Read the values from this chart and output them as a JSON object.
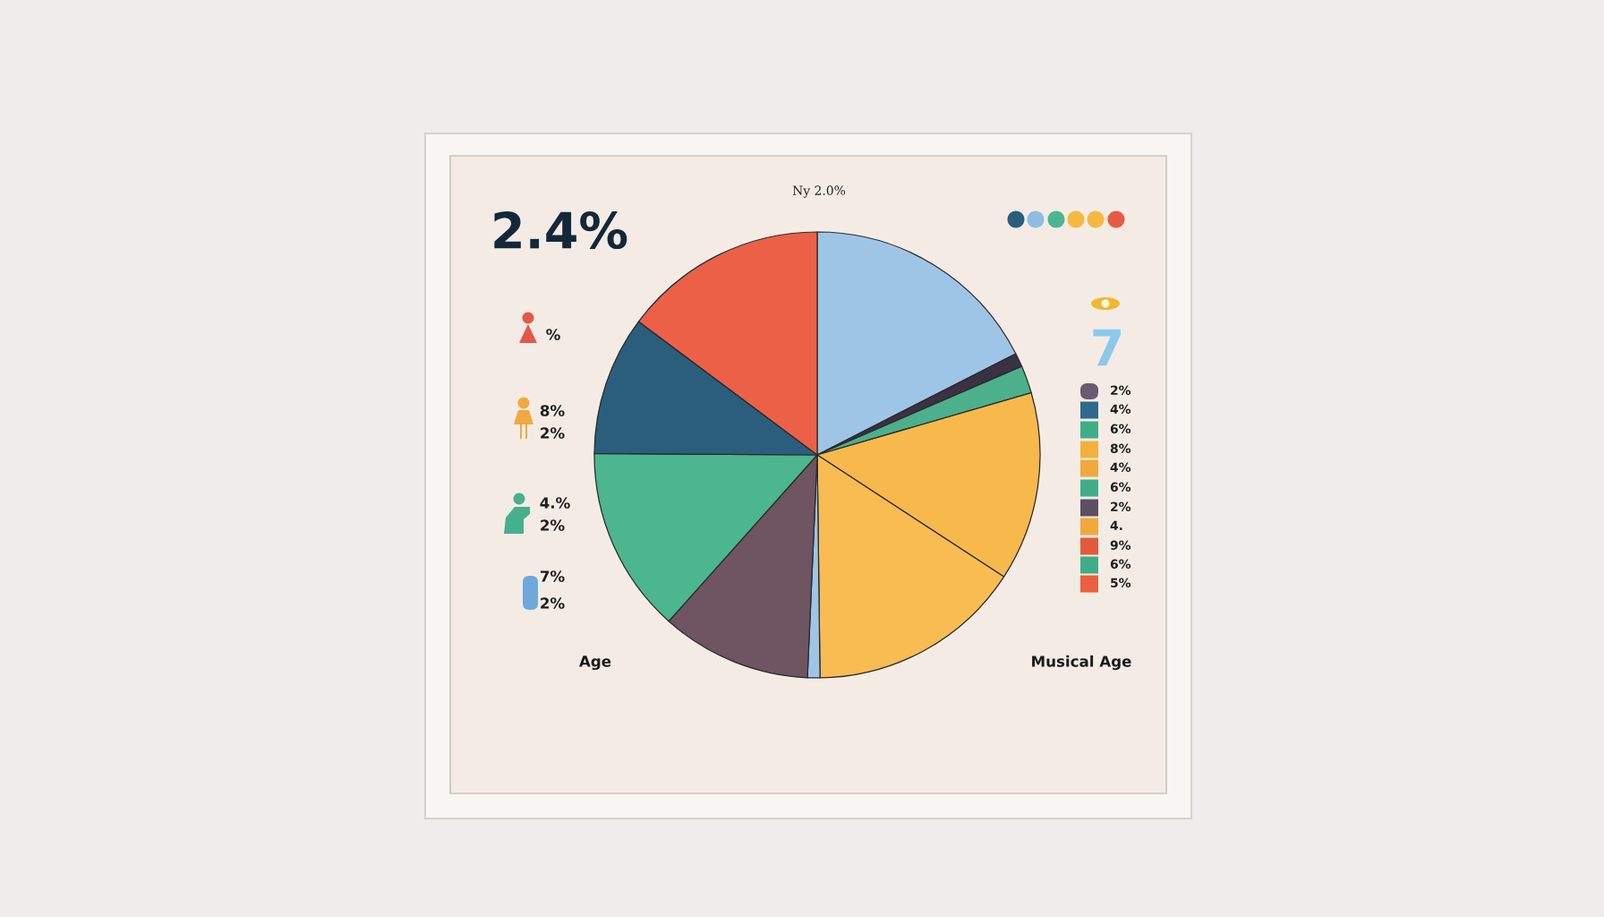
{
  "chart_data": {
    "type": "pie",
    "title": "2.4%",
    "categories": [
      null,
      null,
      null,
      null,
      null,
      null,
      null,
      null,
      null,
      null
    ],
    "values": [
      17.5,
      1.0,
      2.0,
      13.7,
      15.6,
      0.9,
      10.9,
      13.5,
      10.1,
      14.8
    ],
    "colors": [
      "#9fc5e6",
      "#3a3142",
      "#4cb08c",
      "#f8b94c",
      "#f9bc52",
      "#9fc5e6",
      "#6f5462",
      "#4cb68e",
      "#2b5e7d",
      "#ec6048"
    ],
    "annotations": [
      "Ny 2.0%",
      "%",
      "8%",
      "2%",
      "4.%",
      "2%",
      "7%",
      "2%",
      "7",
      "2%",
      "4%",
      "6%",
      "8%",
      "4%",
      "6%",
      "2%",
      "4.",
      "9%",
      "6%",
      "5%",
      "Age",
      "Musical Age"
    ]
  }
}
